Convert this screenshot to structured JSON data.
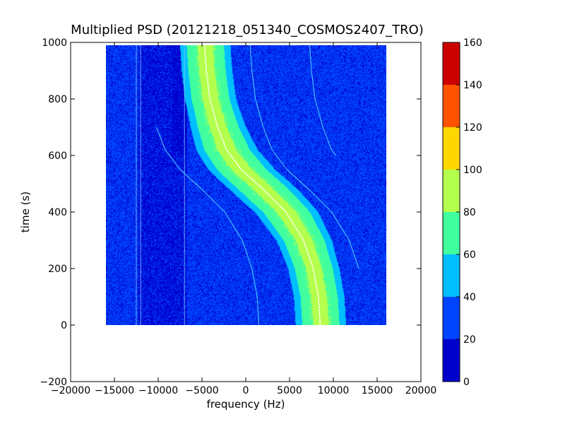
{
  "chart_data": {
    "type": "heatmap",
    "title": "Multiplied PSD (20121218_051340_COSMOS2407_TRO)",
    "xlabel": "frequency (Hz)",
    "ylabel": "time (s)",
    "xlim": [
      -20000,
      20000
    ],
    "ylim": [
      -200,
      1000
    ],
    "x_ticks": [
      -20000,
      -15000,
      -10000,
      -5000,
      0,
      5000,
      10000,
      15000,
      20000
    ],
    "x_tick_labels": [
      "−20000",
      "−15000",
      "−10000",
      "−5000",
      "0",
      "5000",
      "10000",
      "15000",
      "20000"
    ],
    "y_ticks": [
      -200,
      0,
      200,
      400,
      600,
      800,
      1000
    ],
    "y_tick_labels": [
      "−200",
      "0",
      "200",
      "400",
      "600",
      "800",
      "1000"
    ],
    "data_extent": {
      "x": [
        -16000,
        16000
      ],
      "y": [
        0,
        990
      ]
    },
    "colorbar": {
      "levels": [
        0,
        20,
        40,
        60,
        80,
        100,
        120,
        140,
        160
      ],
      "tick_labels": [
        "0",
        "20",
        "40",
        "60",
        "80",
        "100",
        "120",
        "140",
        "160"
      ],
      "colors": [
        "#0000cd",
        "#0044ff",
        "#00bfff",
        "#41ff9f",
        "#b4ff4d",
        "#ffd700",
        "#ff5300",
        "#cd0000"
      ]
    },
    "main_signal": {
      "description_value": "Doppler S-curve carrier",
      "points": [
        {
          "t": 0,
          "f": 8500
        },
        {
          "t": 100,
          "f": 8300
        },
        {
          "t": 200,
          "f": 7700
        },
        {
          "t": 300,
          "f": 6600
        },
        {
          "t": 400,
          "f": 4600
        },
        {
          "t": 480,
          "f": 2000
        },
        {
          "t": 550,
          "f": -500
        },
        {
          "t": 620,
          "f": -2200
        },
        {
          "t": 700,
          "f": -3200
        },
        {
          "t": 800,
          "f": -4100
        },
        {
          "t": 900,
          "f": -4500
        },
        {
          "t": 990,
          "f": -4700
        }
      ],
      "band_halfwidth_hz": 2500,
      "peak_level": 90,
      "band_level": 65
    },
    "background_level": 25,
    "dark_region_level": 15,
    "vertical_lines_hz": [
      -12500,
      -12000,
      -7000
    ],
    "faint_traces": [
      {
        "offset_hz": 5200,
        "t_range": [
          200,
          990
        ]
      },
      {
        "offset_hz": -7000,
        "t_range": [
          0,
          700
        ]
      },
      {
        "offset_hz": 12000,
        "t_range": [
          600,
          990
        ]
      }
    ]
  }
}
